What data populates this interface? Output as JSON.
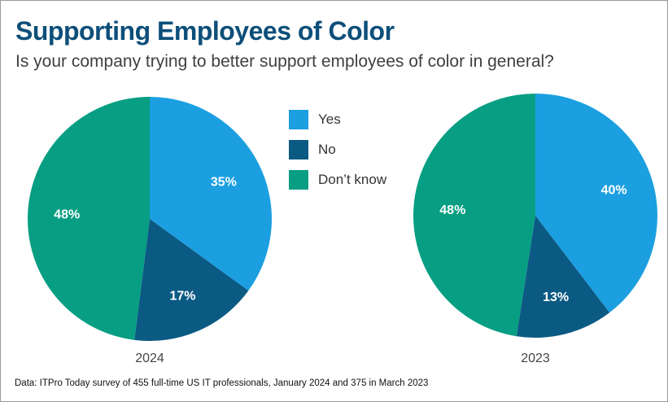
{
  "chart_data": [
    {
      "type": "pie",
      "title": "Supporting Employees of Color",
      "subtitle": "Is your company trying to better support employees of color in general?",
      "label": "2024",
      "categories": [
        "Yes",
        "No",
        "Don’t know"
      ],
      "values": [
        35,
        17,
        48
      ],
      "data_labels": [
        "35%",
        "17%",
        "48%"
      ]
    },
    {
      "type": "pie",
      "label": "2023",
      "categories": [
        "Yes",
        "No",
        "Don’t know"
      ],
      "values": [
        40,
        13,
        48
      ],
      "data_labels": [
        "40%",
        "13%",
        "48%"
      ]
    }
  ],
  "legend": {
    "placement": "center-top",
    "items": [
      {
        "label": "Yes",
        "color": "#1b9fe0"
      },
      {
        "label": "No",
        "color": "#0b5a83"
      },
      {
        "label": "Don’t know",
        "color": "#079e83"
      }
    ]
  },
  "header": {
    "title": "Supporting Employees of Color",
    "subtitle": "Is your company trying to better support employees of color in general?"
  },
  "source": "Data: ITPro Today survey of 455 full-time US IT professionals, January 2024 and 375 in March 2023"
}
